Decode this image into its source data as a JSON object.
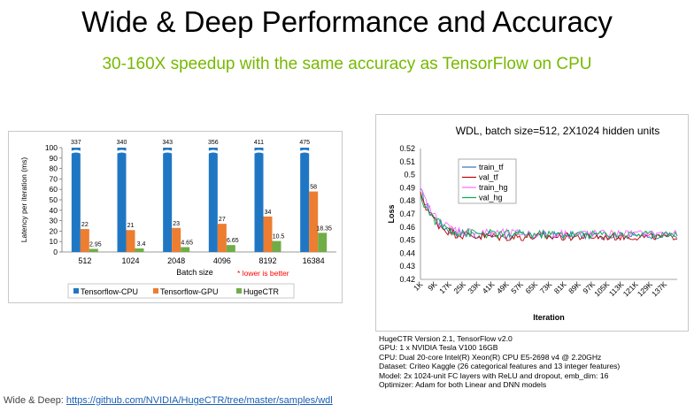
{
  "header": {
    "title": "Wide & Deep Performance and Accuracy",
    "subtitle": "30-160X speedup with the same accuracy as TensorFlow on CPU"
  },
  "colors": {
    "tf_cpu": "#1f77c4",
    "tf_gpu": "#ed7d31",
    "hugectr": "#70ad47",
    "accent": "#76b900",
    "red_note": "#ff0000",
    "train_tf": "#2e75b6",
    "val_tf": "#c00000",
    "train_hg": "#ff66ff",
    "val_hg": "#00b050"
  },
  "chart_data": [
    {
      "type": "bar",
      "ylabel": "Latency per iteration (ms)",
      "xlabel": "Batch size",
      "note": "* lower is better",
      "ylim": [
        0,
        100
      ],
      "yticks": [
        "0",
        "10",
        "20",
        "30",
        "40",
        "50",
        "60",
        "70",
        "80",
        "90",
        "100"
      ],
      "categories": [
        "512",
        "1024",
        "2048",
        "4096",
        "8192",
        "16384"
      ],
      "series": [
        {
          "name": "Tensorflow-CPU",
          "values": [
            337,
            340,
            343,
            356,
            411,
            475
          ],
          "labels": [
            "337",
            "340",
            "343",
            "356",
            "411",
            "475"
          ]
        },
        {
          "name": "Tensorflow-GPU",
          "values": [
            22,
            21,
            23,
            27,
            34,
            58
          ],
          "labels": [
            "22",
            "21",
            "23",
            "27",
            "34",
            "58"
          ]
        },
        {
          "name": "HugeCTR",
          "values": [
            2.95,
            3.4,
            4.65,
            6.65,
            10.5,
            18.35
          ],
          "labels": [
            "2.95",
            "3.4",
            "4.65",
            "6.65",
            "10.5",
            "18.35"
          ]
        }
      ]
    },
    {
      "type": "line",
      "title": "WDL, batch size=512, 2X1024 hidden units",
      "xlabel": "Iteration",
      "ylabel": "Loss",
      "ylim": [
        0.42,
        0.52
      ],
      "yticks": [
        "0.52",
        "0.51",
        "0.5",
        "0.49",
        "0.48",
        "0.47",
        "0.46",
        "0.45",
        "0.44",
        "0.43",
        "0.42"
      ],
      "xticks": [
        "1K",
        "9K",
        "17K",
        "25K",
        "33K",
        "41K",
        "49K",
        "57K",
        "65K",
        "73K",
        "81K",
        "89K",
        "97K",
        "105K",
        "113K",
        "121K",
        "129K",
        "137K"
      ],
      "x_range_k": [
        1,
        144
      ],
      "series": [
        {
          "name": "train_tf",
          "start": 0.489,
          "end": 0.4535
        },
        {
          "name": "val_tf",
          "start": 0.487,
          "end": 0.4525
        },
        {
          "name": "train_hg",
          "start": 0.49,
          "end": 0.455
        },
        {
          "name": "val_hg",
          "start": 0.485,
          "end": 0.4545
        }
      ]
    }
  ],
  "info": {
    "lines": [
      "HugeCTR Version 2.1, TensorFlow v2.0",
      "GPU: 1 x NVIDIA Tesla V100 16GB",
      "CPU: Dual 20-core Intel(R) Xeon(R) CPU E5-2698 v4 @ 2.20GHz",
      "Dataset: Criteo Kaggle (26 categorical features and 13 integer features)",
      "Model: 2x 1024-unit FC layers with ReLU and dropout, emb_dim: 16",
      "Optimizer: Adam for both Linear and DNN models"
    ]
  },
  "footer": {
    "prefix": "Wide & Deep: ",
    "link": "https://github.com/NVIDIA/HugeCTR/tree/master/samples/wdl"
  }
}
